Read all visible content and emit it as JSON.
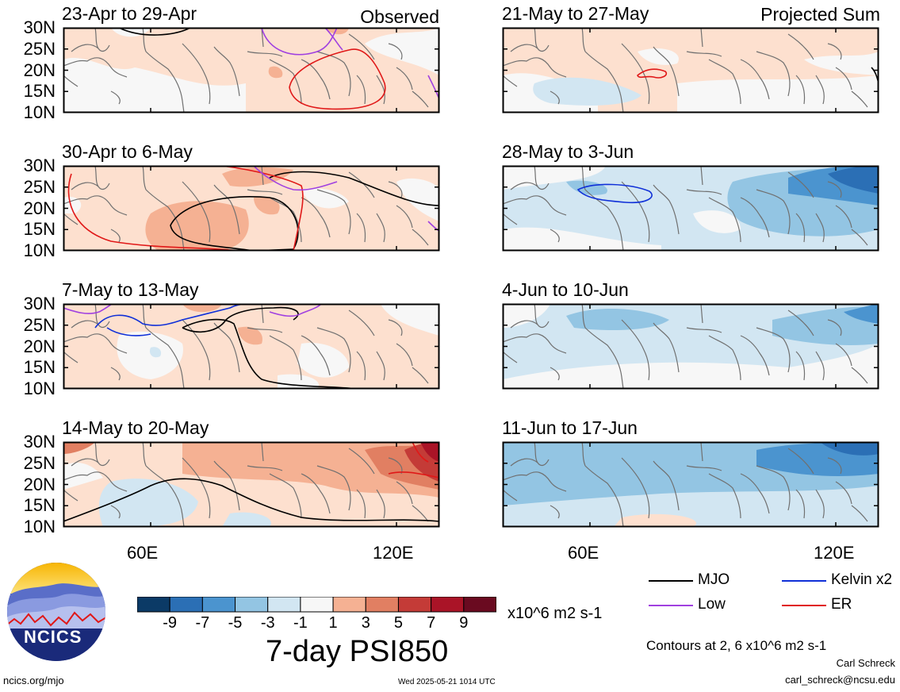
{
  "colors": {
    "scale": [
      "#0b3a66",
      "#2b6fb5",
      "#4b94cf",
      "#93c5e3",
      "#d2e6f2",
      "#f7f7f7",
      "#fde0cf",
      "#f5b193",
      "#e17f62",
      "#c43b37",
      "#aa1427",
      "#6a0a20"
    ],
    "mjo": "#000000",
    "kelvin": "#1030d8",
    "low": "#a040e0",
    "er": "#e01818",
    "coast": "#707070"
  },
  "icons": {
    "logo": "ncics-logo"
  },
  "columns": [
    {
      "label": "Observed",
      "panels": [
        {
          "title": "23-Apr to 29-Apr",
          "shading": "observed-1"
        },
        {
          "title": "30-Apr to 6-May",
          "shading": "observed-2"
        },
        {
          "title": "7-May to 13-May",
          "shading": "observed-3"
        },
        {
          "title": "14-May to 20-May",
          "shading": "observed-4"
        }
      ]
    },
    {
      "label": "Projected Sum",
      "panels": [
        {
          "title": "21-May to 27-May",
          "shading": "projected-1"
        },
        {
          "title": "28-May to 3-Jun",
          "shading": "projected-2"
        },
        {
          "title": "4-Jun to 10-Jun",
          "shading": "projected-3"
        },
        {
          "title": "11-Jun to 17-Jun",
          "shading": "projected-4"
        }
      ]
    }
  ],
  "axes": {
    "lat_labels": [
      "30N",
      "25N",
      "20N",
      "15N",
      "10N"
    ],
    "lon_labels": [
      "60E",
      "120E"
    ]
  },
  "colorbar": {
    "ticks": [
      "-9",
      "-7",
      "-5",
      "-3",
      "-1",
      "1",
      "3",
      "5",
      "7",
      "9"
    ],
    "units": "x10^6 m2 s-1"
  },
  "title": "7-day PSI850",
  "legend": [
    {
      "name": "MJO",
      "color_key": "mjo"
    },
    {
      "name": "Kelvin x2",
      "color_key": "kelvin"
    },
    {
      "name": "Low",
      "color_key": "low"
    },
    {
      "name": "ER",
      "color_key": "er"
    }
  ],
  "contours_note": "Contours at 2, 6 x10^6 m2 s-1",
  "author": "Carl Schreck",
  "email": "carl_schreck@ncsu.edu",
  "site": "ncics.org/mjo",
  "timestamp": "Wed 2025-05-21 1014 UTC",
  "logo_text": "NCICS"
}
